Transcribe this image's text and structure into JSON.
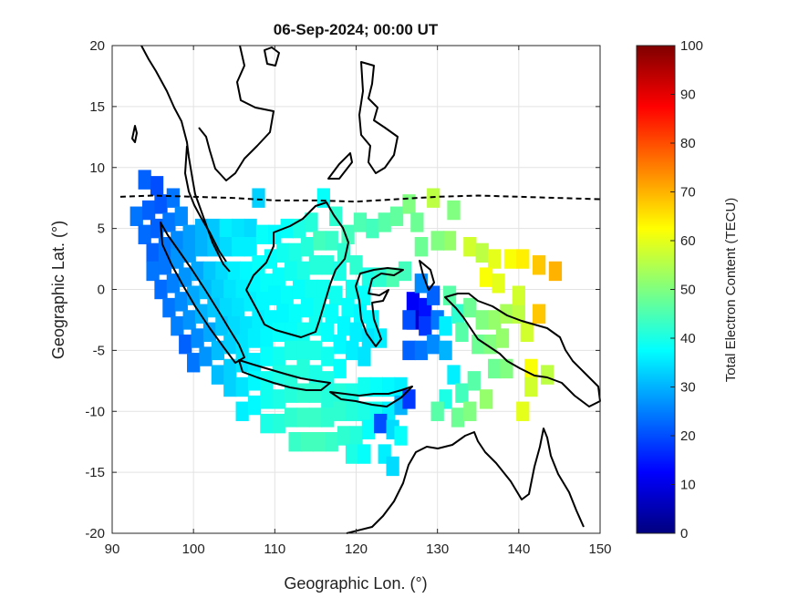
{
  "chart_data": {
    "type": "heatmap",
    "title": "06-Sep-2024; 00:00 UT",
    "xlabel": "Geographic Lon. (°)",
    "ylabel": "Geographic Lat. (°)",
    "xlim": [
      90,
      150
    ],
    "ylim": [
      -20,
      20
    ],
    "xticks": [
      90,
      100,
      110,
      120,
      130,
      140,
      150
    ],
    "yticks": [
      -20,
      -15,
      -10,
      -5,
      0,
      5,
      10,
      15,
      20
    ],
    "grid": true,
    "colorbar": {
      "label": "Total Electron Content (TECU)",
      "min": 0,
      "max": 100,
      "ticks": [
        0,
        10,
        20,
        30,
        40,
        50,
        60,
        70,
        80,
        90,
        100
      ],
      "colormap": "jet"
    },
    "magnetic_equator": {
      "style": "dashed",
      "lon": [
        91,
        95,
        100,
        105,
        110,
        115,
        120,
        125,
        130,
        135,
        140,
        145,
        150
      ],
      "lat": [
        7.6,
        7.7,
        7.6,
        7.5,
        7.3,
        7.3,
        7.2,
        7.4,
        7.6,
        7.7,
        7.6,
        7.5,
        7.4
      ]
    },
    "tec_cells": [
      {
        "lon": 94,
        "lat": 9,
        "tec": 22
      },
      {
        "lon": 95.5,
        "lat": 8.5,
        "tec": 20
      },
      {
        "lon": 93,
        "lat": 6,
        "tec": 24
      },
      {
        "lon": 94.5,
        "lat": 6.5,
        "tec": 22
      },
      {
        "lon": 96,
        "lat": 7,
        "tec": 21
      },
      {
        "lon": 97.5,
        "lat": 7.5,
        "tec": 24
      },
      {
        "lon": 94,
        "lat": 4.5,
        "tec": 23
      },
      {
        "lon": 95.5,
        "lat": 5,
        "tec": 22
      },
      {
        "lon": 97,
        "lat": 5.5,
        "tec": 24
      },
      {
        "lon": 98.5,
        "lat": 6,
        "tec": 26
      },
      {
        "lon": 95,
        "lat": 3,
        "tec": 22
      },
      {
        "lon": 96.5,
        "lat": 3.5,
        "tec": 24
      },
      {
        "lon": 98,
        "lat": 4,
        "tec": 26
      },
      {
        "lon": 99.5,
        "lat": 4.5,
        "tec": 28
      },
      {
        "lon": 101,
        "lat": 5,
        "tec": 30
      },
      {
        "lon": 102.5,
        "lat": 5,
        "tec": 32
      },
      {
        "lon": 104,
        "lat": 5,
        "tec": 36
      },
      {
        "lon": 105.5,
        "lat": 5,
        "tec": 35
      },
      {
        "lon": 107,
        "lat": 5,
        "tec": 34
      },
      {
        "lon": 108,
        "lat": 7.5,
        "tec": 33
      },
      {
        "lon": 95,
        "lat": 1.5,
        "tec": 24
      },
      {
        "lon": 96.5,
        "lat": 2,
        "tec": 24
      },
      {
        "lon": 98,
        "lat": 2.5,
        "tec": 27
      },
      {
        "lon": 99.5,
        "lat": 3,
        "tec": 28
      },
      {
        "lon": 101,
        "lat": 3.5,
        "tec": 30
      },
      {
        "lon": 102.5,
        "lat": 3.5,
        "tec": 32
      },
      {
        "lon": 104,
        "lat": 3.5,
        "tec": 34
      },
      {
        "lon": 105.5,
        "lat": 3.5,
        "tec": 36
      },
      {
        "lon": 107,
        "lat": 3.5,
        "tec": 36
      },
      {
        "lon": 108.5,
        "lat": 4.5,
        "tec": 38
      },
      {
        "lon": 110,
        "lat": 4.5,
        "tec": 37
      },
      {
        "lon": 111.5,
        "lat": 5,
        "tec": 38
      },
      {
        "lon": 113,
        "lat": 5,
        "tec": 40
      },
      {
        "lon": 114.5,
        "lat": 5.5,
        "tec": 41
      },
      {
        "lon": 116,
        "lat": 7.5,
        "tec": 38
      },
      {
        "lon": 117.5,
        "lat": 6,
        "tec": 42
      },
      {
        "lon": 119,
        "lat": 4.5,
        "tec": 44
      },
      {
        "lon": 120.5,
        "lat": 5.5,
        "tec": 45
      },
      {
        "lon": 122,
        "lat": 5,
        "tec": 44
      },
      {
        "lon": 123.5,
        "lat": 5.5,
        "tec": 46
      },
      {
        "lon": 125,
        "lat": 6,
        "tec": 47
      },
      {
        "lon": 126.5,
        "lat": 7,
        "tec": 50
      },
      {
        "lon": 127.5,
        "lat": 5.5,
        "tec": 48
      },
      {
        "lon": 96,
        "lat": 0,
        "tec": 23
      },
      {
        "lon": 97.5,
        "lat": 0.5,
        "tec": 25
      },
      {
        "lon": 99,
        "lat": 1,
        "tec": 27
      },
      {
        "lon": 100.5,
        "lat": 1.5,
        "tec": 29
      },
      {
        "lon": 102,
        "lat": 1.5,
        "tec": 32
      },
      {
        "lon": 103.5,
        "lat": 1.5,
        "tec": 34
      },
      {
        "lon": 105,
        "lat": 1.5,
        "tec": 36
      },
      {
        "lon": 106.5,
        "lat": 1.5,
        "tec": 37
      },
      {
        "lon": 108,
        "lat": 2,
        "tec": 38
      },
      {
        "lon": 109.5,
        "lat": 2.5,
        "tec": 38
      },
      {
        "lon": 111,
        "lat": 3,
        "tec": 39
      },
      {
        "lon": 112.5,
        "lat": 3,
        "tec": 40
      },
      {
        "lon": 114,
        "lat": 3.5,
        "tec": 41
      },
      {
        "lon": 115.5,
        "lat": 4,
        "tec": 44
      },
      {
        "lon": 117,
        "lat": 4,
        "tec": 43
      },
      {
        "lon": 118.5,
        "lat": 3,
        "tec": 42
      },
      {
        "lon": 120,
        "lat": 2,
        "tec": 42
      },
      {
        "lon": 121.5,
        "lat": 1,
        "tec": 40
      },
      {
        "lon": 123,
        "lat": 1,
        "tec": 42
      },
      {
        "lon": 124.5,
        "lat": 1,
        "tec": 45
      },
      {
        "lon": 126,
        "lat": 1.5,
        "tec": 44
      },
      {
        "lon": 97,
        "lat": -1.5,
        "tec": 24
      },
      {
        "lon": 98.5,
        "lat": -1,
        "tec": 26
      },
      {
        "lon": 100,
        "lat": -0.5,
        "tec": 29
      },
      {
        "lon": 101.5,
        "lat": 0,
        "tec": 31
      },
      {
        "lon": 103,
        "lat": 0,
        "tec": 33
      },
      {
        "lon": 104.5,
        "lat": 0,
        "tec": 35
      },
      {
        "lon": 106,
        "lat": 0,
        "tec": 36
      },
      {
        "lon": 107.5,
        "lat": 0.5,
        "tec": 37
      },
      {
        "lon": 109,
        "lat": 0.5,
        "tec": 38
      },
      {
        "lon": 110.5,
        "lat": 1,
        "tec": 38
      },
      {
        "lon": 112,
        "lat": 1.5,
        "tec": 39
      },
      {
        "lon": 113.5,
        "lat": 1.5,
        "tec": 40
      },
      {
        "lon": 115,
        "lat": 2,
        "tec": 41
      },
      {
        "lon": 116.5,
        "lat": 2,
        "tec": 41
      },
      {
        "lon": 118,
        "lat": 1.5,
        "tec": 40
      },
      {
        "lon": 119.5,
        "lat": 0,
        "tec": 39
      },
      {
        "lon": 121,
        "lat": -0.5,
        "tec": 38
      },
      {
        "lon": 98,
        "lat": -3,
        "tec": 25
      },
      {
        "lon": 99.5,
        "lat": -2.5,
        "tec": 27
      },
      {
        "lon": 101,
        "lat": -2,
        "tec": 30
      },
      {
        "lon": 102.5,
        "lat": -1.5,
        "tec": 32
      },
      {
        "lon": 104,
        "lat": -1.5,
        "tec": 34
      },
      {
        "lon": 105.5,
        "lat": -1.5,
        "tec": 35
      },
      {
        "lon": 107,
        "lat": -1,
        "tec": 36
      },
      {
        "lon": 108.5,
        "lat": -1,
        "tec": 37
      },
      {
        "lon": 110,
        "lat": -0.5,
        "tec": 37
      },
      {
        "lon": 111.5,
        "lat": -0.5,
        "tec": 38
      },
      {
        "lon": 113,
        "lat": 0,
        "tec": 38
      },
      {
        "lon": 114.5,
        "lat": 0,
        "tec": 39
      },
      {
        "lon": 116,
        "lat": 0,
        "tec": 39
      },
      {
        "lon": 117.5,
        "lat": -0.5,
        "tec": 39
      },
      {
        "lon": 119,
        "lat": -1.5,
        "tec": 38
      },
      {
        "lon": 120.5,
        "lat": -2,
        "tec": 37
      },
      {
        "lon": 122,
        "lat": -2.5,
        "tec": 37
      },
      {
        "lon": 99,
        "lat": -4.5,
        "tec": 22
      },
      {
        "lon": 100.5,
        "lat": -4,
        "tec": 26
      },
      {
        "lon": 102,
        "lat": -3.5,
        "tec": 29
      },
      {
        "lon": 103.5,
        "lat": -3,
        "tec": 32
      },
      {
        "lon": 105,
        "lat": -3,
        "tec": 34
      },
      {
        "lon": 106.5,
        "lat": -3,
        "tec": 35
      },
      {
        "lon": 108,
        "lat": -2.5,
        "tec": 36
      },
      {
        "lon": 109.5,
        "lat": -2.5,
        "tec": 37
      },
      {
        "lon": 111,
        "lat": -2,
        "tec": 37
      },
      {
        "lon": 112.5,
        "lat": -2,
        "tec": 38
      },
      {
        "lon": 114,
        "lat": -1.5,
        "tec": 38
      },
      {
        "lon": 115.5,
        "lat": -1.5,
        "tec": 39
      },
      {
        "lon": 117,
        "lat": -2,
        "tec": 38
      },
      {
        "lon": 118.5,
        "lat": -3,
        "tec": 37
      },
      {
        "lon": 120,
        "lat": -3.5,
        "tec": 36
      },
      {
        "lon": 121.5,
        "lat": -4,
        "tec": 35
      },
      {
        "lon": 123,
        "lat": -4,
        "tec": 36
      },
      {
        "lon": 100,
        "lat": -6,
        "tec": 24
      },
      {
        "lon": 101.5,
        "lat": -5.5,
        "tec": 27
      },
      {
        "lon": 103,
        "lat": -5,
        "tec": 31
      },
      {
        "lon": 104.5,
        "lat": -4.5,
        "tec": 33
      },
      {
        "lon": 106,
        "lat": -4.5,
        "tec": 35
      },
      {
        "lon": 107.5,
        "lat": -4,
        "tec": 36
      },
      {
        "lon": 109,
        "lat": -4,
        "tec": 37
      },
      {
        "lon": 110.5,
        "lat": -3.5,
        "tec": 38
      },
      {
        "lon": 112,
        "lat": -3.5,
        "tec": 38
      },
      {
        "lon": 113.5,
        "lat": -3.5,
        "tec": 39
      },
      {
        "lon": 115,
        "lat": -3,
        "tec": 39
      },
      {
        "lon": 116.5,
        "lat": -3.5,
        "tec": 38
      },
      {
        "lon": 118,
        "lat": -4.5,
        "tec": 37
      },
      {
        "lon": 119.5,
        "lat": -5,
        "tec": 36
      },
      {
        "lon": 121,
        "lat": -5.5,
        "tec": 35
      },
      {
        "lon": 103,
        "lat": -7,
        "tec": 31
      },
      {
        "lon": 104.5,
        "lat": -6.5,
        "tec": 33
      },
      {
        "lon": 106,
        "lat": -6,
        "tec": 35
      },
      {
        "lon": 107.5,
        "lat": -6,
        "tec": 36
      },
      {
        "lon": 109,
        "lat": -5.5,
        "tec": 38
      },
      {
        "lon": 110.5,
        "lat": -5.5,
        "tec": 39
      },
      {
        "lon": 112,
        "lat": -5,
        "tec": 40
      },
      {
        "lon": 113.5,
        "lat": -5,
        "tec": 40
      },
      {
        "lon": 115,
        "lat": -5,
        "tec": 40
      },
      {
        "lon": 116.5,
        "lat": -5.5,
        "tec": 39
      },
      {
        "lon": 118,
        "lat": -6.5,
        "tec": 38
      },
      {
        "lon": 104.5,
        "lat": -8,
        "tec": 33
      },
      {
        "lon": 106,
        "lat": -8,
        "tec": 35
      },
      {
        "lon": 107.5,
        "lat": -7.5,
        "tec": 37
      },
      {
        "lon": 109,
        "lat": -7.5,
        "tec": 39
      },
      {
        "lon": 110.5,
        "lat": -7,
        "tec": 40
      },
      {
        "lon": 112,
        "lat": -7,
        "tec": 41
      },
      {
        "lon": 113.5,
        "lat": -6.5,
        "tec": 41
      },
      {
        "lon": 115,
        "lat": -7,
        "tec": 40
      },
      {
        "lon": 116.5,
        "lat": -7.5,
        "tec": 40
      },
      {
        "lon": 106,
        "lat": -10,
        "tec": 36
      },
      {
        "lon": 107.5,
        "lat": -9.5,
        "tec": 37
      },
      {
        "lon": 109,
        "lat": -9,
        "tec": 39
      },
      {
        "lon": 110.5,
        "lat": -9,
        "tec": 40
      },
      {
        "lon": 112,
        "lat": -8.5,
        "tec": 41
      },
      {
        "lon": 113.5,
        "lat": -8.5,
        "tec": 42
      },
      {
        "lon": 115,
        "lat": -8.5,
        "tec": 42
      },
      {
        "lon": 116.5,
        "lat": -9,
        "tec": 41
      },
      {
        "lon": 118,
        "lat": -8.5,
        "tec": 41
      },
      {
        "lon": 119.5,
        "lat": -8.5,
        "tec": 40
      },
      {
        "lon": 121,
        "lat": -8,
        "tec": 39
      },
      {
        "lon": 122.5,
        "lat": -8,
        "tec": 38
      },
      {
        "lon": 124,
        "lat": -8,
        "tec": 37
      },
      {
        "lon": 125.5,
        "lat": -8,
        "tec": 36
      },
      {
        "lon": 109,
        "lat": -11,
        "tec": 40
      },
      {
        "lon": 110.5,
        "lat": -11,
        "tec": 41
      },
      {
        "lon": 112,
        "lat": -10.5,
        "tec": 42
      },
      {
        "lon": 113.5,
        "lat": -10.5,
        "tec": 43
      },
      {
        "lon": 115,
        "lat": -10.5,
        "tec": 43
      },
      {
        "lon": 116.5,
        "lat": -10.5,
        "tec": 42
      },
      {
        "lon": 118,
        "lat": -10,
        "tec": 42
      },
      {
        "lon": 119.5,
        "lat": -10,
        "tec": 41
      },
      {
        "lon": 121,
        "lat": -10,
        "tec": 40
      },
      {
        "lon": 122.5,
        "lat": -10,
        "tec": 39
      },
      {
        "lon": 124,
        "lat": -10,
        "tec": 36
      },
      {
        "lon": 125.5,
        "lat": -9.5,
        "tec": 30
      },
      {
        "lon": 126.5,
        "lat": -9,
        "tec": 18
      },
      {
        "lon": 112.5,
        "lat": -12.5,
        "tec": 43
      },
      {
        "lon": 114,
        "lat": -12.5,
        "tec": 44
      },
      {
        "lon": 115.5,
        "lat": -12.5,
        "tec": 44
      },
      {
        "lon": 117,
        "lat": -12.5,
        "tec": 43
      },
      {
        "lon": 118.5,
        "lat": -12,
        "tec": 42
      },
      {
        "lon": 120,
        "lat": -12,
        "tec": 41
      },
      {
        "lon": 121.5,
        "lat": -11.5,
        "tec": 38
      },
      {
        "lon": 123,
        "lat": -11,
        "tec": 20
      },
      {
        "lon": 124.5,
        "lat": -11.5,
        "tec": 34
      },
      {
        "lon": 125.5,
        "lat": -12,
        "tec": 38
      },
      {
        "lon": 119.5,
        "lat": -13.5,
        "tec": 40
      },
      {
        "lon": 121,
        "lat": -13.5,
        "tec": 38
      },
      {
        "lon": 123.5,
        "lat": -13.5,
        "tec": 36
      },
      {
        "lon": 124.5,
        "lat": -14.5,
        "tec": 34
      },
      {
        "lon": 127,
        "lat": -1,
        "tec": 12
      },
      {
        "lon": 127,
        "lat": -2.5,
        "tec": 8
      },
      {
        "lon": 128.5,
        "lat": -1.5,
        "tec": 14
      },
      {
        "lon": 128.5,
        "lat": -3,
        "tec": 18
      },
      {
        "lon": 129.5,
        "lat": -0.5,
        "tec": 22
      },
      {
        "lon": 130,
        "lat": -2.5,
        "tec": 24
      },
      {
        "lon": 128,
        "lat": 0.5,
        "tec": 26
      },
      {
        "lon": 126.5,
        "lat": -5,
        "tec": 22
      },
      {
        "lon": 128,
        "lat": -5,
        "tec": 24
      },
      {
        "lon": 129.5,
        "lat": -4.5,
        "tec": 26
      },
      {
        "lon": 131,
        "lat": -5,
        "tec": 30
      },
      {
        "lon": 126.5,
        "lat": -2.5,
        "tec": 20
      },
      {
        "lon": 131,
        "lat": -3,
        "tec": 36
      },
      {
        "lon": 132.5,
        "lat": -2,
        "tec": 42
      },
      {
        "lon": 134,
        "lat": -1.5,
        "tec": 48
      },
      {
        "lon": 131.5,
        "lat": -0.5,
        "tec": 46
      },
      {
        "lon": 132,
        "lat": -7,
        "tec": 36
      },
      {
        "lon": 131,
        "lat": -9,
        "tec": 40
      },
      {
        "lon": 133,
        "lat": -8.5,
        "tec": 44
      },
      {
        "lon": 134.5,
        "lat": -7.5,
        "tec": 46
      },
      {
        "lon": 130,
        "lat": -10,
        "tec": 46
      },
      {
        "lon": 132.5,
        "lat": -10.5,
        "tec": 48
      },
      {
        "lon": 134,
        "lat": -10,
        "tec": 50
      },
      {
        "lon": 136,
        "lat": -9,
        "tec": 52
      },
      {
        "lon": 137,
        "lat": -6.5,
        "tec": 48
      },
      {
        "lon": 138.5,
        "lat": -6.5,
        "tec": 50
      },
      {
        "lon": 135,
        "lat": -4.5,
        "tec": 48
      },
      {
        "lon": 136.5,
        "lat": -4.5,
        "tec": 50
      },
      {
        "lon": 138,
        "lat": -4,
        "tec": 52
      },
      {
        "lon": 135.5,
        "lat": -2.5,
        "tec": 50
      },
      {
        "lon": 137,
        "lat": -2.5,
        "tec": 52
      },
      {
        "lon": 138.5,
        "lat": -2,
        "tec": 54
      },
      {
        "lon": 140,
        "lat": -2,
        "tec": 56
      },
      {
        "lon": 141,
        "lat": -3.5,
        "tec": 58
      },
      {
        "lon": 142.5,
        "lat": -2,
        "tec": 68
      },
      {
        "lon": 141.5,
        "lat": -6.5,
        "tec": 62
      },
      {
        "lon": 143.5,
        "lat": -7,
        "tec": 56
      },
      {
        "lon": 140.5,
        "lat": -10,
        "tec": 60
      },
      {
        "lon": 141.5,
        "lat": -8,
        "tec": 58
      },
      {
        "lon": 133,
        "lat": -3.5,
        "tec": 46
      },
      {
        "lon": 134,
        "lat": 3.5,
        "tec": 58
      },
      {
        "lon": 135.5,
        "lat": 3,
        "tec": 56
      },
      {
        "lon": 137,
        "lat": 2.5,
        "tec": 60
      },
      {
        "lon": 136,
        "lat": 1,
        "tec": 62
      },
      {
        "lon": 137.5,
        "lat": 0.5,
        "tec": 60
      },
      {
        "lon": 139,
        "lat": 2.5,
        "tec": 62
      },
      {
        "lon": 140.5,
        "lat": 2.5,
        "tec": 64
      },
      {
        "lon": 142.5,
        "lat": 2,
        "tec": 68
      },
      {
        "lon": 144.5,
        "lat": 1.5,
        "tec": 70
      },
      {
        "lon": 140,
        "lat": -0.5,
        "tec": 58
      },
      {
        "lon": 131.5,
        "lat": 4,
        "tec": 52
      },
      {
        "lon": 132,
        "lat": 6.5,
        "tec": 50
      },
      {
        "lon": 130,
        "lat": 4,
        "tec": 50
      },
      {
        "lon": 129.5,
        "lat": 7.5,
        "tec": 56
      },
      {
        "lon": 128,
        "lat": 3.5,
        "tec": 48
      }
    ]
  }
}
